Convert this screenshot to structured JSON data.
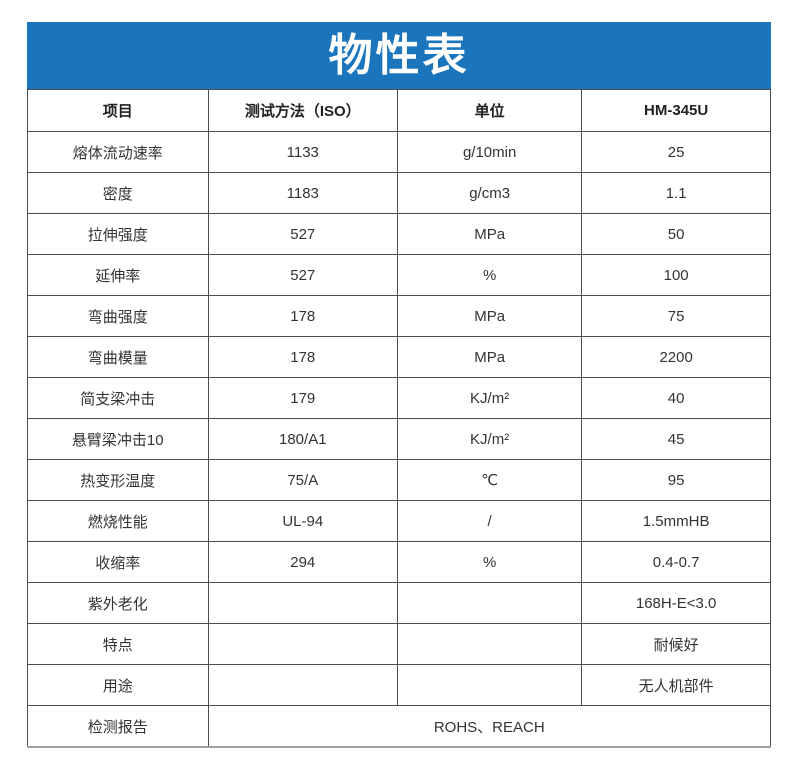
{
  "title": "物性表",
  "colors": {
    "banner_bg": "#1b75bc",
    "banner_text": "#ffffff",
    "border": "#4d4d4d",
    "text": "#333333"
  },
  "table": {
    "headers": {
      "item": "项目",
      "method": "测试方法（ISO）",
      "unit": "单位",
      "grade": "HM-345U"
    },
    "rows": [
      {
        "item": "熔体流动速率",
        "method": "1133",
        "unit": "g/10min",
        "value": "25"
      },
      {
        "item": "密度",
        "method": "1183",
        "unit": "g/cm3",
        "value": "1.1"
      },
      {
        "item": "拉伸强度",
        "method": "527",
        "unit": "MPa",
        "value": "50"
      },
      {
        "item": "延伸率",
        "method": "527",
        "unit": "%",
        "value": "100"
      },
      {
        "item": "弯曲强度",
        "method": "178",
        "unit": "MPa",
        "value": "75"
      },
      {
        "item": "弯曲模量",
        "method": "178",
        "unit": "MPa",
        "value": "2200"
      },
      {
        "item": "简支梁冲击",
        "method": "179",
        "unit": "KJ/m²",
        "value": "40"
      },
      {
        "item": "悬臂梁冲击10",
        "method": "180/A1",
        "unit": "KJ/m²",
        "value": "45"
      },
      {
        "item": "热变形温度",
        "method": "75/A",
        "unit": "℃",
        "value": "95"
      },
      {
        "item": "燃烧性能",
        "method": "UL-94",
        "unit": "/",
        "value": "1.5mmHB"
      },
      {
        "item": "收缩率",
        "method": "294",
        "unit": "%",
        "value": "0.4-0.7"
      },
      {
        "item": "紫外老化",
        "method": "",
        "unit": "",
        "value": "168H-E<3.0"
      },
      {
        "item": "特点",
        "method": "",
        "unit": "",
        "value": "耐候好"
      },
      {
        "item": "用途",
        "method": "",
        "unit": "",
        "value": "无人机部件"
      }
    ],
    "footer": {
      "item": "检测报告",
      "value": "ROHS、REACH"
    }
  }
}
